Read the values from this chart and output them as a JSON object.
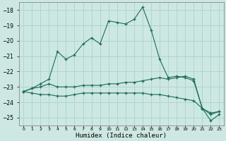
{
  "xlabel": "Humidex (Indice chaleur)",
  "background_color": "#cde8e3",
  "grid_color": "#b0d5cc",
  "line_color": "#1a6b5a",
  "x": [
    0,
    1,
    2,
    3,
    4,
    5,
    6,
    7,
    8,
    9,
    10,
    11,
    12,
    13,
    14,
    15,
    16,
    17,
    18,
    19,
    20,
    21,
    22,
    23
  ],
  "series1": [
    -23.3,
    -23.1,
    -22.8,
    -22.5,
    -20.7,
    -21.2,
    -20.9,
    -20.2,
    -19.8,
    -20.2,
    -18.7,
    -18.8,
    -18.9,
    -18.6,
    -17.8,
    -19.3,
    -21.2,
    -22.4,
    -22.3,
    -22.4,
    -22.6,
    -24.4,
    -24.7,
    -24.6
  ],
  "series2": [
    -23.3,
    -23.1,
    -23.0,
    -22.8,
    -23.0,
    -23.0,
    -23.0,
    -22.9,
    -22.9,
    -22.9,
    -22.8,
    -22.8,
    -22.7,
    -22.7,
    -22.6,
    -22.5,
    -22.4,
    -22.5,
    -22.4,
    -22.3,
    -22.5,
    -24.4,
    -24.8,
    -24.6
  ],
  "series3": [
    -23.3,
    -23.4,
    -23.5,
    -23.5,
    -23.6,
    -23.6,
    -23.5,
    -23.4,
    -23.4,
    -23.4,
    -23.4,
    -23.4,
    -23.4,
    -23.4,
    -23.4,
    -23.5,
    -23.5,
    -23.6,
    -23.7,
    -23.8,
    -23.9,
    -24.4,
    -25.2,
    -24.8
  ],
  "ylim": [
    -25.5,
    -17.5
  ],
  "yticks": [
    -18,
    -19,
    -20,
    -21,
    -22,
    -23,
    -24,
    -25
  ],
  "xlim": [
    -0.5,
    23.5
  ]
}
